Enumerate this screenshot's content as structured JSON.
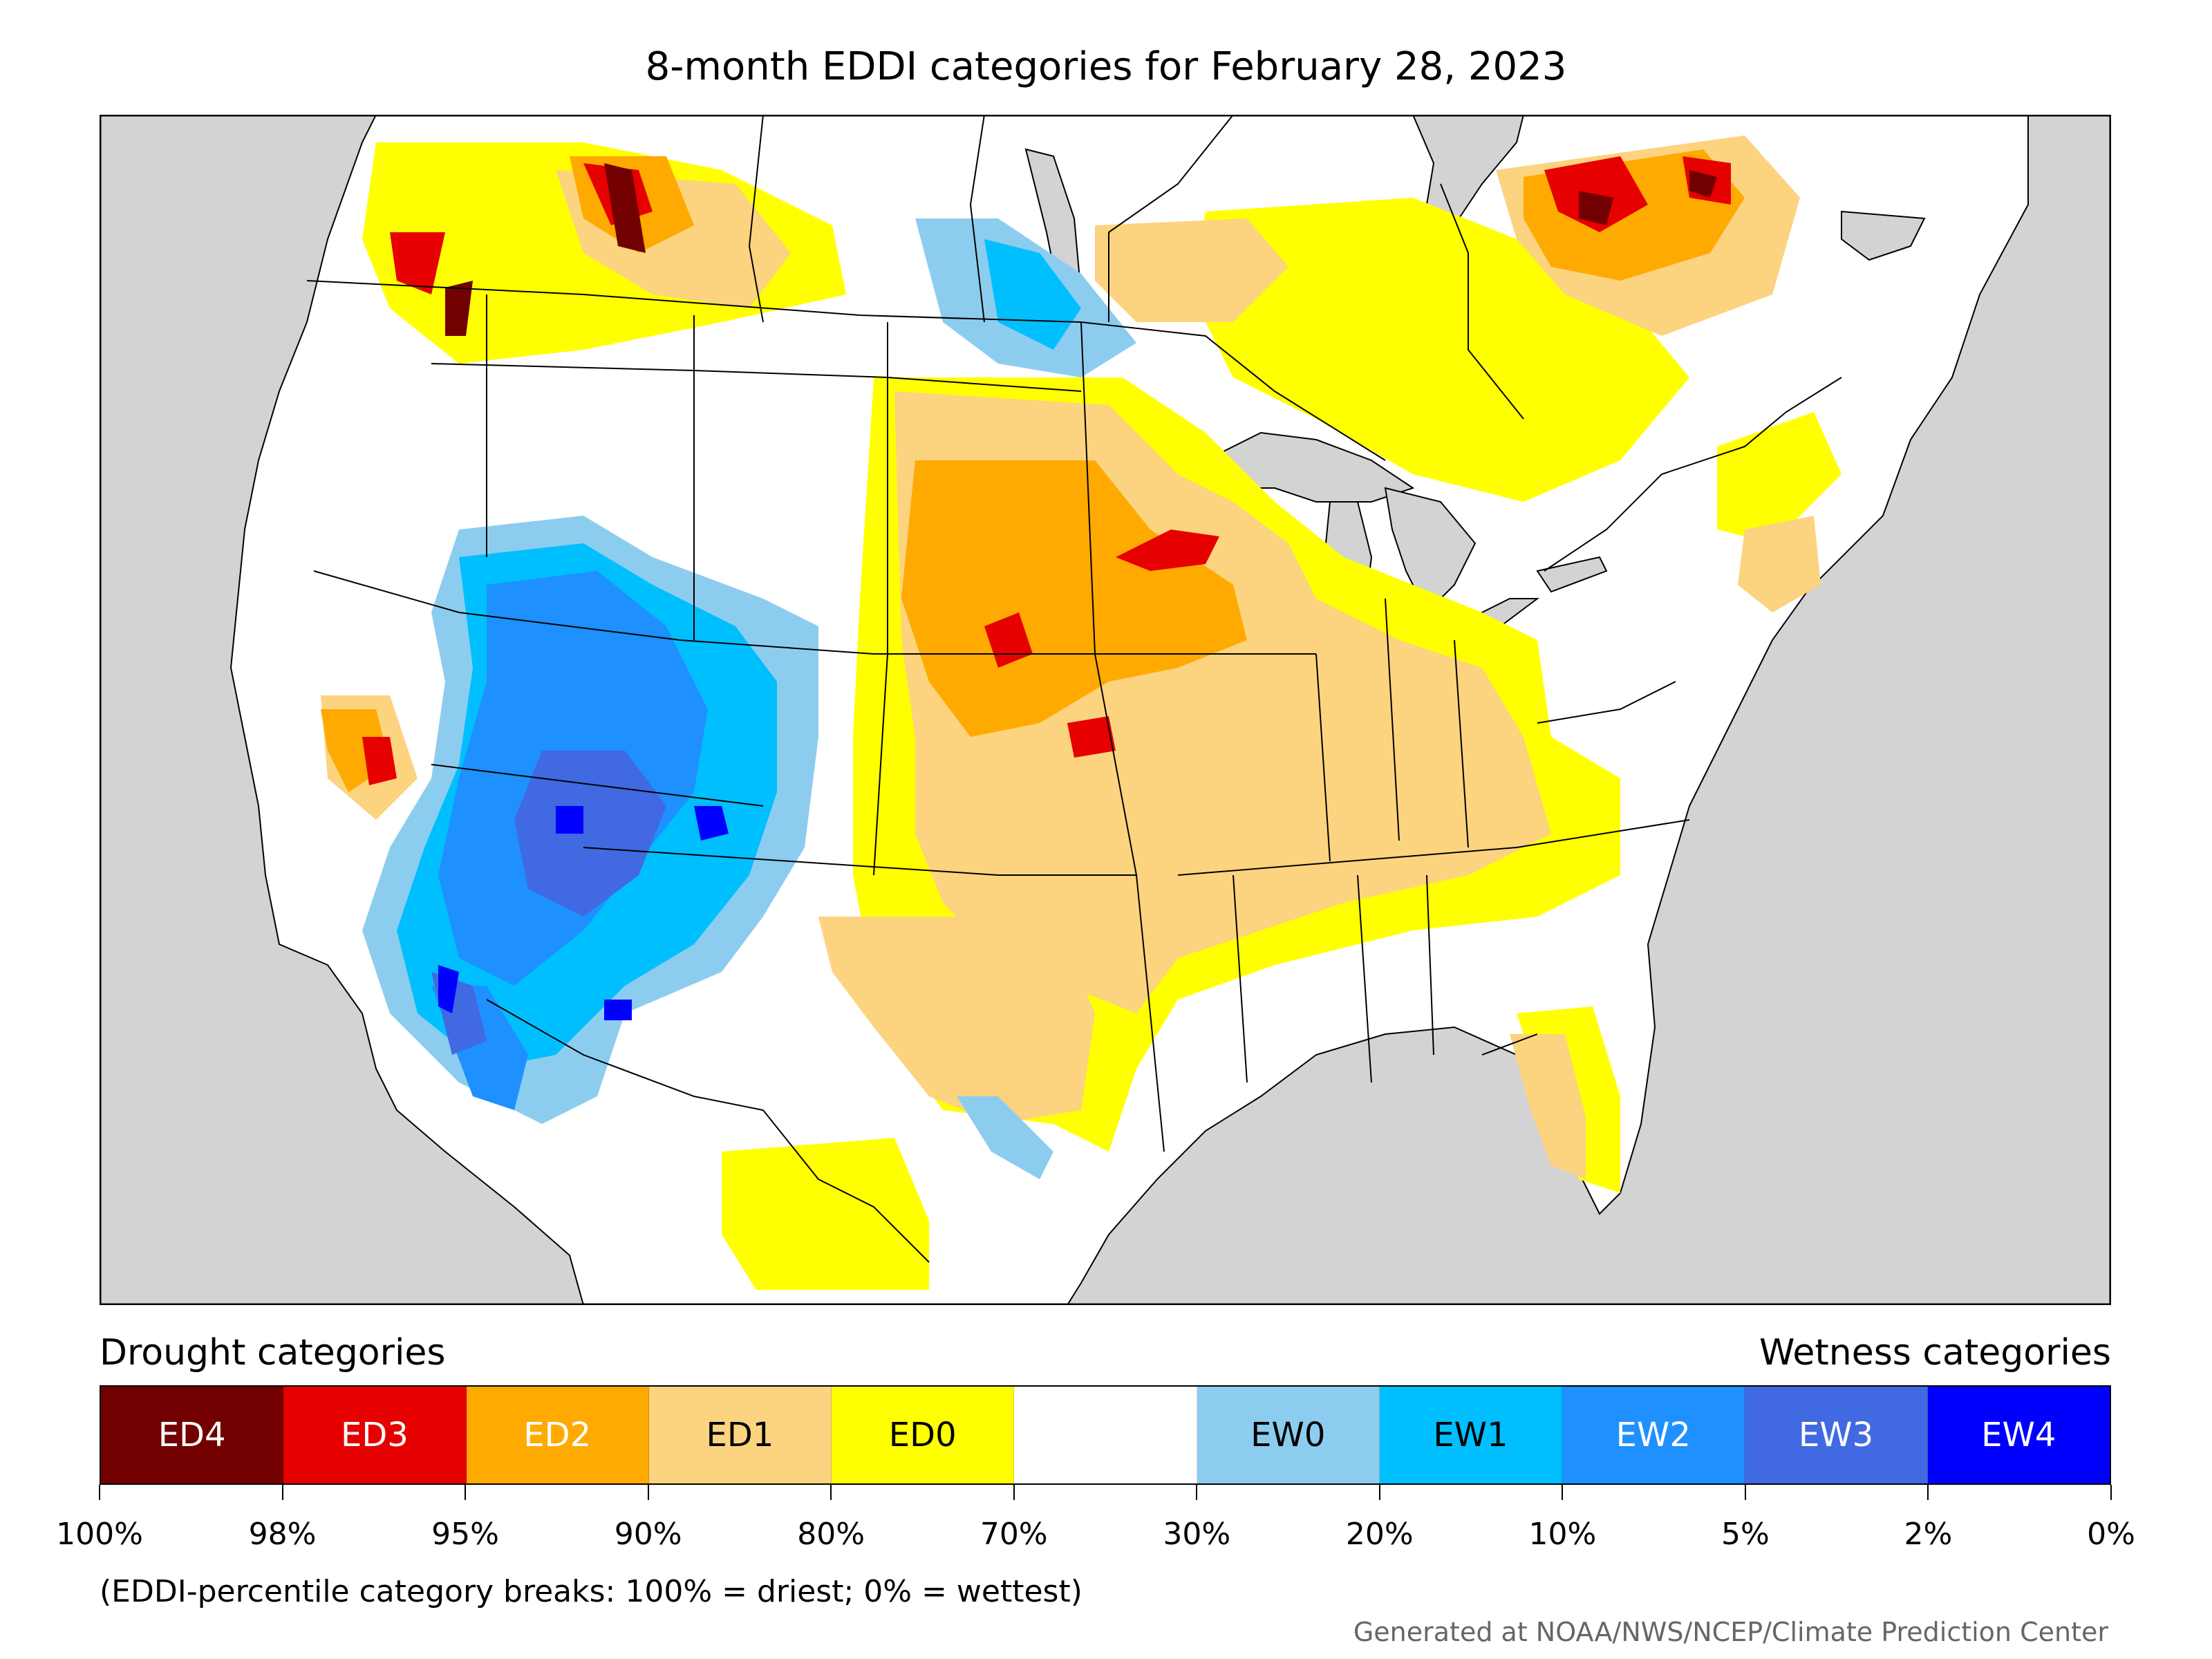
{
  "title": "8-month EDDI categories for February 28, 2023",
  "legend": {
    "drought_heading": "Drought categories",
    "wetness_heading": "Wetness categories",
    "categories": [
      {
        "label": "ED4",
        "color": "#730000",
        "text_color": "#ffffff"
      },
      {
        "label": "ED3",
        "color": "#e60000",
        "text_color": "#ffffff"
      },
      {
        "label": "ED2",
        "color": "#ffaa00",
        "text_color": "#ffffff"
      },
      {
        "label": "ED1",
        "color": "#fcd37f",
        "text_color": "#000000"
      },
      {
        "label": "ED0",
        "color": "#ffff00",
        "text_color": "#000000"
      },
      {
        "label": "",
        "color": "#ffffff",
        "text_color": "#000000"
      },
      {
        "label": "EW0",
        "color": "#8ccdef",
        "text_color": "#000000"
      },
      {
        "label": "EW1",
        "color": "#00bfff",
        "text_color": "#000000"
      },
      {
        "label": "EW2",
        "color": "#1e90ff",
        "text_color": "#ffffff"
      },
      {
        "label": "EW3",
        "color": "#4169e1",
        "text_color": "#ffffff"
      },
      {
        "label": "EW4",
        "color": "#0000ff",
        "text_color": "#ffffff"
      }
    ],
    "tick_labels": [
      "100%",
      "98%",
      "95%",
      "90%",
      "80%",
      "70%",
      "30%",
      "20%",
      "10%",
      "5%",
      "2%",
      "0%"
    ]
  },
  "note": "(EDDI-percentile category breaks: 100% = driest; 0% = wettest)",
  "credit": "Generated at NOAA/NWS/NCEP/Climate Prediction Center",
  "map": {
    "land_color": "#ffffff",
    "non_analysis_color": "#d3d3d3",
    "border_color": "#000000"
  }
}
